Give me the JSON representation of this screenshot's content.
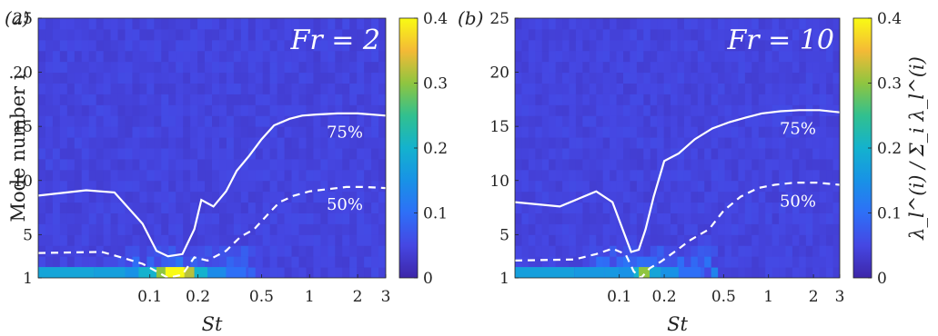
{
  "chart_data": [
    {
      "type": "heatmap",
      "panel_label": "(a)",
      "annotation": "Fr = 2",
      "xlabel": "St",
      "ylabel": "Mode number i",
      "x_scale": "log",
      "xlim": [
        0.02,
        3
      ],
      "xticks": [
        0.1,
        0.2,
        0.5,
        1,
        2,
        3
      ],
      "xtick_labels": [
        "0.1",
        "0.2",
        "0.5",
        "1",
        "2",
        "3"
      ],
      "ylim": [
        1,
        25
      ],
      "yticks": [
        1,
        5,
        10,
        15,
        20,
        25
      ],
      "ytick_labels": [
        "1",
        "5",
        "10",
        "15",
        "20",
        "25"
      ],
      "colorbar": {
        "min": 0,
        "max": 0.4,
        "ticks": [
          "0",
          "0.1",
          "0.2",
          "0.3",
          "0.4"
        ],
        "label": ""
      },
      "series": [
        {
          "style": "solid",
          "label": "75%",
          "x": [
            0.02,
            0.04,
            0.06,
            0.09,
            0.11,
            0.13,
            0.16,
            0.19,
            0.21,
            0.25,
            0.3,
            0.35,
            0.42,
            0.5,
            0.6,
            0.75,
            0.9,
            1.1,
            1.5,
            2,
            3
          ],
          "y": [
            8.6,
            9.1,
            8.9,
            6.0,
            3.5,
            3.0,
            3.2,
            5.5,
            8.2,
            7.6,
            9.0,
            10.9,
            12.3,
            13.8,
            15.1,
            15.7,
            16.0,
            16.1,
            16.2,
            16.2,
            16.0
          ]
        },
        {
          "style": "dashed",
          "label": "50%",
          "x": [
            0.02,
            0.05,
            0.07,
            0.09,
            0.11,
            0.13,
            0.16,
            0.19,
            0.23,
            0.3,
            0.37,
            0.45,
            0.55,
            0.65,
            0.8,
            1,
            1.3,
            1.7,
            2.2,
            3
          ],
          "y": [
            3.3,
            3.4,
            2.8,
            2.3,
            1.6,
            0.9,
            1.3,
            2.9,
            2.6,
            3.5,
            4.8,
            5.5,
            6.9,
            8.0,
            8.6,
            9.0,
            9.2,
            9.4,
            9.4,
            9.3
          ]
        }
      ],
      "bottom_band": [
        {
          "x0": 0.02,
          "x1": 0.045,
          "value": 0.18
        },
        {
          "x0": 0.045,
          "x1": 0.07,
          "value": 0.17
        },
        {
          "x0": 0.07,
          "x1": 0.085,
          "value": 0.15
        },
        {
          "x0": 0.085,
          "x1": 0.11,
          "value": 0.2
        },
        {
          "x0": 0.11,
          "x1": 0.125,
          "value": 0.3
        },
        {
          "x0": 0.125,
          "x1": 0.165,
          "value": 0.4
        },
        {
          "x0": 0.165,
          "x1": 0.19,
          "value": 0.32
        },
        {
          "x0": 0.19,
          "x1": 0.23,
          "value": 0.2
        },
        {
          "x0": 0.23,
          "x1": 0.3,
          "value": 0.14
        },
        {
          "x0": 0.3,
          "x1": 0.4,
          "value": 0.1
        }
      ]
    },
    {
      "type": "heatmap",
      "panel_label": "(b)",
      "annotation": "Fr = 10",
      "xlabel": "St",
      "ylabel": "",
      "x_scale": "log",
      "xlim": [
        0.02,
        3
      ],
      "xticks": [
        0.1,
        0.2,
        0.5,
        1,
        2,
        3
      ],
      "xtick_labels": [
        "0.1",
        "0.2",
        "0.5",
        "1",
        "2",
        "3"
      ],
      "ylim": [
        1,
        25
      ],
      "yticks": [
        1,
        5,
        10,
        15,
        20,
        25
      ],
      "ytick_labels": [
        "1",
        "5",
        "10",
        "15",
        "20",
        "25"
      ],
      "colorbar": {
        "min": 0,
        "max": 0.4,
        "ticks": [
          "0",
          "0.1",
          "0.2",
          "0.3",
          "0.4"
        ],
        "label": "λ_l^(i) / Σ_i λ_l^(i)"
      },
      "series": [
        {
          "style": "solid",
          "label": "75%",
          "x": [
            0.02,
            0.04,
            0.07,
            0.09,
            0.12,
            0.135,
            0.15,
            0.17,
            0.2,
            0.25,
            0.32,
            0.42,
            0.55,
            0.7,
            0.9,
            1.2,
            1.6,
            2.2,
            3
          ],
          "y": [
            8.0,
            7.6,
            9.0,
            8.0,
            3.4,
            3.6,
            5.5,
            8.5,
            11.8,
            12.5,
            13.8,
            14.8,
            15.4,
            15.8,
            16.2,
            16.4,
            16.5,
            16.5,
            16.3
          ]
        },
        {
          "style": "dashed",
          "label": "50%",
          "x": [
            0.02,
            0.05,
            0.07,
            0.09,
            0.11,
            0.125,
            0.14,
            0.16,
            0.19,
            0.24,
            0.3,
            0.4,
            0.5,
            0.65,
            0.85,
            1.1,
            1.5,
            2.1,
            3
          ],
          "y": [
            2.6,
            2.7,
            3.2,
            3.7,
            3.2,
            1.6,
            1.0,
            1.9,
            2.5,
            3.5,
            4.5,
            5.5,
            7.2,
            8.5,
            9.3,
            9.6,
            9.8,
            9.8,
            9.6
          ]
        }
      ],
      "bottom_band": [
        {
          "x0": 0.02,
          "x1": 0.05,
          "value": 0.17
        },
        {
          "x0": 0.05,
          "x1": 0.08,
          "value": 0.16
        },
        {
          "x0": 0.08,
          "x1": 0.1,
          "value": 0.16
        },
        {
          "x0": 0.1,
          "x1": 0.125,
          "value": 0.15
        },
        {
          "x0": 0.125,
          "x1": 0.135,
          "value": 0.2
        },
        {
          "x0": 0.135,
          "x1": 0.16,
          "value": 0.3
        },
        {
          "x0": 0.16,
          "x1": 0.19,
          "value": 0.18
        },
        {
          "x0": 0.19,
          "x1": 0.25,
          "value": 0.15
        },
        {
          "x0": 0.25,
          "x1": 0.35,
          "value": 0.1
        }
      ]
    }
  ]
}
